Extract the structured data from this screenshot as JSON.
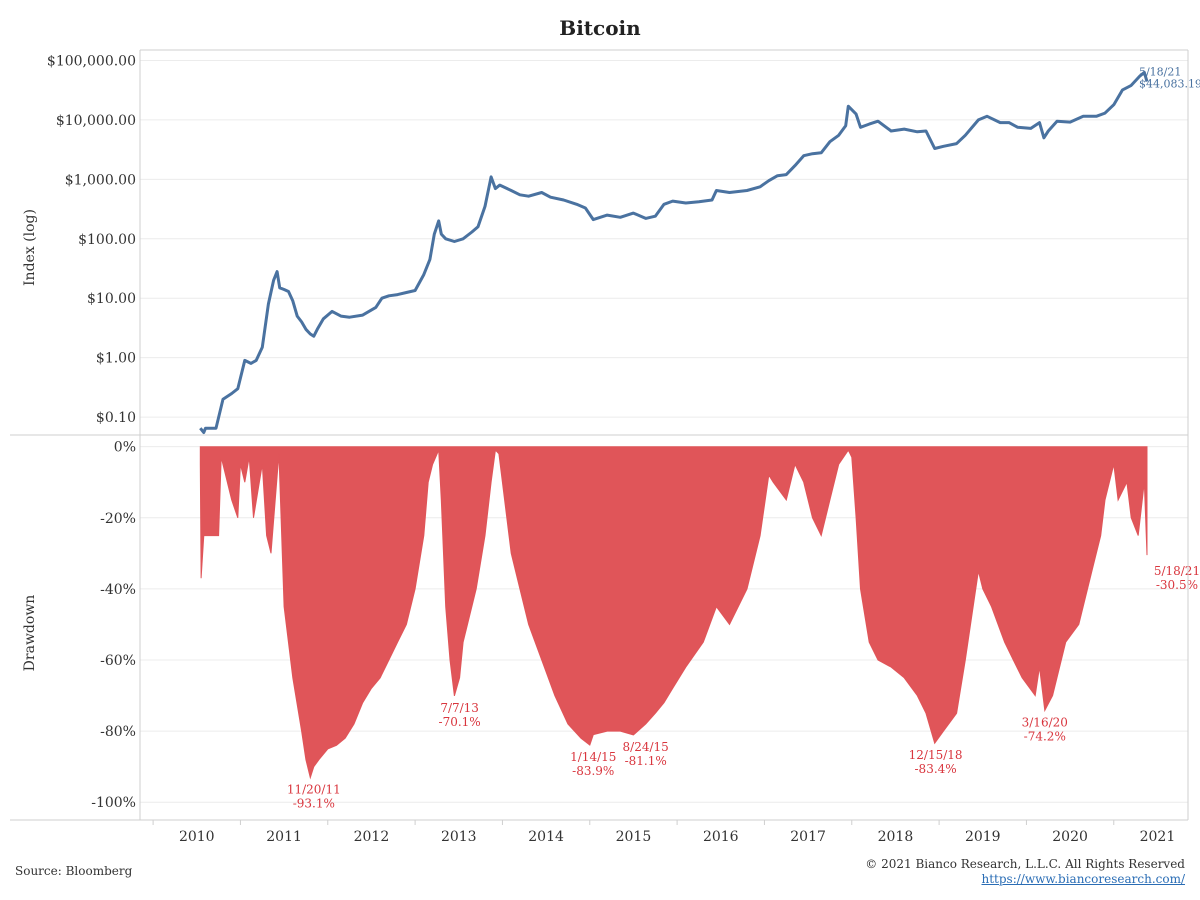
{
  "page": {
    "source": "Source: Bloomberg",
    "copyright": "© 2021 Bianco Research, L.L.C. All Rights Reserved",
    "link": "https://www.biancoresearch.com/"
  },
  "chart_data": [
    {
      "type": "line",
      "title": "Bitcoin",
      "ylabel": "Index (log)",
      "yscale": "log",
      "ylim": [
        0.05,
        150000
      ],
      "xlim": [
        2009.85,
        2021.85
      ],
      "grid": true,
      "color": "#4a72a0",
      "y_ticks": [
        0.1,
        1,
        10,
        100,
        1000,
        10000,
        100000
      ],
      "y_tick_labels": [
        "$0.10",
        "$1.00",
        "$10.00",
        "$100.00",
        "$1,000.00",
        "$10,000.00",
        "$100,000.00"
      ],
      "series": [
        {
          "x": [
            2010.54,
            2010.58,
            2010.6,
            2010.72,
            2010.8,
            2010.9,
            2010.97,
            2011.05,
            2011.12,
            2011.18,
            2011.25,
            2011.32,
            2011.38,
            2011.42,
            2011.45,
            2011.5,
            2011.55,
            2011.6,
            2011.65,
            2011.7,
            2011.75,
            2011.8,
            2011.84,
            2011.88,
            2011.95,
            2012.05,
            2012.15,
            2012.25,
            2012.4,
            2012.55,
            2012.62,
            2012.7,
            2012.8,
            2012.9,
            2013.0,
            2013.1,
            2013.17,
            2013.22,
            2013.27,
            2013.3,
            2013.35,
            2013.45,
            2013.55,
            2013.65,
            2013.72,
            2013.8,
            2013.87,
            2013.92,
            2013.97,
            2014.1,
            2014.2,
            2014.3,
            2014.45,
            2014.55,
            2014.7,
            2014.85,
            2014.95,
            2015.04,
            2015.2,
            2015.35,
            2015.5,
            2015.64,
            2015.75,
            2015.85,
            2015.95,
            2016.1,
            2016.25,
            2016.4,
            2016.45,
            2016.6,
            2016.8,
            2016.95,
            2017.05,
            2017.15,
            2017.25,
            2017.35,
            2017.45,
            2017.55,
            2017.65,
            2017.75,
            2017.85,
            2017.93,
            2017.96,
            2018.05,
            2018.1,
            2018.2,
            2018.3,
            2018.45,
            2018.6,
            2018.75,
            2018.85,
            2018.95,
            2019.05,
            2019.2,
            2019.3,
            2019.45,
            2019.55,
            2019.7,
            2019.8,
            2019.9,
            2020.05,
            2020.15,
            2020.2,
            2020.25,
            2020.35,
            2020.5,
            2020.65,
            2020.8,
            2020.9,
            2021.0,
            2021.1,
            2021.2,
            2021.3,
            2021.35,
            2021.38
          ],
          "y": [
            0.065,
            0.055,
            0.065,
            0.065,
            0.2,
            0.25,
            0.3,
            0.9,
            0.8,
            0.9,
            1.5,
            8,
            20,
            28,
            15,
            14,
            13,
            9,
            5,
            4,
            3,
            2.5,
            2.3,
            3,
            4.5,
            6,
            5,
            4.8,
            5.2,
            7,
            10,
            11,
            11.5,
            12.5,
            13.5,
            25,
            45,
            120,
            200,
            120,
            100,
            90,
            100,
            130,
            160,
            350,
            1100,
            700,
            800,
            650,
            550,
            520,
            600,
            500,
            450,
            380,
            330,
            210,
            250,
            230,
            270,
            220,
            240,
            380,
            430,
            400,
            420,
            450,
            650,
            600,
            650,
            750,
            950,
            1150,
            1200,
            1700,
            2500,
            2700,
            2800,
            4300,
            5500,
            8000,
            17000,
            12500,
            7500,
            8500,
            9500,
            6500,
            7000,
            6300,
            6500,
            3300,
            3600,
            4000,
            5500,
            10000,
            11500,
            9000,
            9000,
            7500,
            7200,
            9000,
            5000,
            6500,
            9500,
            9200,
            11500,
            11500,
            13000,
            18000,
            32000,
            38000,
            55000,
            63000,
            44083.19
          ]
        }
      ],
      "annotations": [
        {
          "x": 2021.38,
          "y": 44083.19,
          "lines": [
            "5/18/21",
            "$44,083.19"
          ]
        }
      ]
    },
    {
      "type": "area",
      "ylabel": "Drawdown",
      "ylim": [
        -105,
        3
      ],
      "xlim": [
        2009.85,
        2021.85
      ],
      "grid": true,
      "color": "#e05559",
      "y_ticks": [
        0,
        -20,
        -40,
        -60,
        -80,
        -100
      ],
      "y_tick_labels": [
        "0%",
        "-20%",
        "-40%",
        "-60%",
        "-80%",
        "-100%"
      ],
      "x_ticks": [
        2010,
        2011,
        2012,
        2013,
        2014,
        2015,
        2016,
        2017,
        2018,
        2019,
        2020,
        2021
      ],
      "series": [
        {
          "x": [
            2010.54,
            2010.55,
            2010.58,
            2010.75,
            2010.78,
            2010.9,
            2010.97,
            2011.0,
            2011.05,
            2011.1,
            2011.15,
            2011.25,
            2011.3,
            2011.35,
            2011.44,
            2011.5,
            2011.6,
            2011.7,
            2011.75,
            2011.8,
            2011.84,
            2011.9,
            2012.0,
            2012.1,
            2012.2,
            2012.3,
            2012.4,
            2012.5,
            2012.6,
            2012.7,
            2012.8,
            2012.9,
            2013.0,
            2013.1,
            2013.15,
            2013.2,
            2013.27,
            2013.3,
            2013.35,
            2013.4,
            2013.45,
            2013.51,
            2013.55,
            2013.6,
            2013.7,
            2013.8,
            2013.87,
            2013.92,
            2013.96,
            2014.1,
            2014.2,
            2014.3,
            2014.45,
            2014.6,
            2014.75,
            2014.9,
            2015.0,
            2015.04,
            2015.2,
            2015.35,
            2015.5,
            2015.64,
            2015.75,
            2015.85,
            2015.95,
            2016.1,
            2016.3,
            2016.45,
            2016.6,
            2016.8,
            2016.95,
            2017.05,
            2017.1,
            2017.25,
            2017.35,
            2017.45,
            2017.55,
            2017.65,
            2017.75,
            2017.85,
            2017.96,
            2018.0,
            2018.05,
            2018.1,
            2018.2,
            2018.3,
            2018.45,
            2018.6,
            2018.75,
            2018.85,
            2018.95,
            2019.05,
            2019.2,
            2019.3,
            2019.45,
            2019.5,
            2019.6,
            2019.75,
            2019.85,
            2019.95,
            2020.1,
            2020.15,
            2020.21,
            2020.3,
            2020.45,
            2020.6,
            2020.75,
            2020.85,
            2020.9,
            2021.0,
            2021.05,
            2021.15,
            2021.2,
            2021.28,
            2021.35,
            2021.38
          ],
          "y": [
            -5,
            -37,
            -25,
            -25,
            -3,
            -15,
            -20,
            -5,
            -10,
            -3,
            -20,
            -5,
            -25,
            -30,
            -2,
            -45,
            -65,
            -80,
            -88,
            -93.1,
            -90,
            -88,
            -85,
            -84,
            -82,
            -78,
            -72,
            -68,
            -65,
            -60,
            -55,
            -50,
            -40,
            -25,
            -10,
            -5,
            -1,
            -15,
            -45,
            -60,
            -70.1,
            -65,
            -55,
            -50,
            -40,
            -25,
            -10,
            -1,
            -2,
            -30,
            -40,
            -50,
            -60,
            -70,
            -78,
            -82,
            -83.9,
            -81,
            -80,
            -80,
            -81.1,
            -78,
            -75,
            -72,
            -68,
            -62,
            -55,
            -45,
            -50,
            -40,
            -25,
            -8,
            -10,
            -15,
            -5,
            -10,
            -20,
            -25,
            -15,
            -5,
            -1,
            -3,
            -20,
            -40,
            -55,
            -60,
            -62,
            -65,
            -70,
            -75,
            -83.4,
            -80,
            -75,
            -60,
            -35,
            -40,
            -45,
            -55,
            -60,
            -65,
            -70,
            -62,
            -74.2,
            -70,
            -55,
            -50,
            -35,
            -25,
            -15,
            -5,
            -15,
            -10,
            -20,
            -25,
            -10,
            -30.5
          ]
        }
      ],
      "annotations": [
        {
          "x": 2011.84,
          "y": -93.1,
          "lines": [
            "11/20/11",
            "-93.1%"
          ]
        },
        {
          "x": 2013.51,
          "y": -70.1,
          "lines": [
            "7/7/13",
            "-70.1%"
          ]
        },
        {
          "x": 2015.04,
          "y": -83.9,
          "lines": [
            "1/14/15",
            "-83.9%"
          ]
        },
        {
          "x": 2015.64,
          "y": -81.1,
          "lines": [
            "8/24/15",
            "-81.1%"
          ]
        },
        {
          "x": 2018.96,
          "y": -83.4,
          "lines": [
            "12/15/18",
            "-83.4%"
          ]
        },
        {
          "x": 2020.21,
          "y": -74.2,
          "lines": [
            "3/16/20",
            "-74.2%"
          ]
        },
        {
          "x": 2021.38,
          "y": -30.5,
          "lines": [
            "5/18/21",
            "-30.5%"
          ]
        }
      ]
    }
  ]
}
